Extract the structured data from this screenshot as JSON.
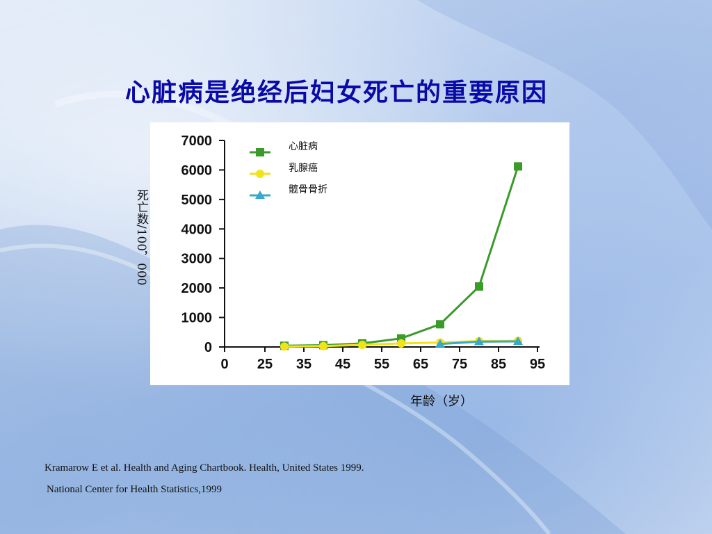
{
  "slide": {
    "title": "心脏病是绝经后妇女死亡的重要原因",
    "source_line1": "Kramarow E et al. Health and Aging Chartbook. Health, United States 1999.",
    "source_line2": "National Center for Health Statistics,1999"
  },
  "chart_data": {
    "type": "line",
    "xlabel": "年龄（岁）",
    "ylabel": "死亡数/100，000",
    "xlim": [
      0,
      95
    ],
    "ylim": [
      0,
      7000
    ],
    "x_ticks": [
      "0",
      "25",
      "35",
      "45",
      "55",
      "65",
      "75",
      "85",
      "95"
    ],
    "y_ticks": [
      "7000",
      "6000",
      "5000",
      "4000",
      "3000",
      "2000",
      "1000",
      "0"
    ],
    "grid": false,
    "legend_position": "top-left",
    "series": [
      {
        "name": "心脏病",
        "color": "#3a9a2a",
        "marker": "square",
        "x": [
          30,
          40,
          50,
          60,
          70,
          80,
          90
        ],
        "y": [
          40,
          60,
          120,
          290,
          770,
          2050,
          6120
        ]
      },
      {
        "name": "乳腺癌",
        "color": "#f2e21a",
        "marker": "circle",
        "x": [
          30,
          40,
          50,
          60,
          70,
          80,
          90
        ],
        "y": [
          15,
          30,
          70,
          120,
          150,
          200,
          210
        ]
      },
      {
        "name": "髋骨骨折",
        "color": "#3aa8c8",
        "marker": "triangle",
        "x": [
          70,
          80,
          90
        ],
        "y": [
          100,
          180,
          190
        ]
      }
    ]
  }
}
